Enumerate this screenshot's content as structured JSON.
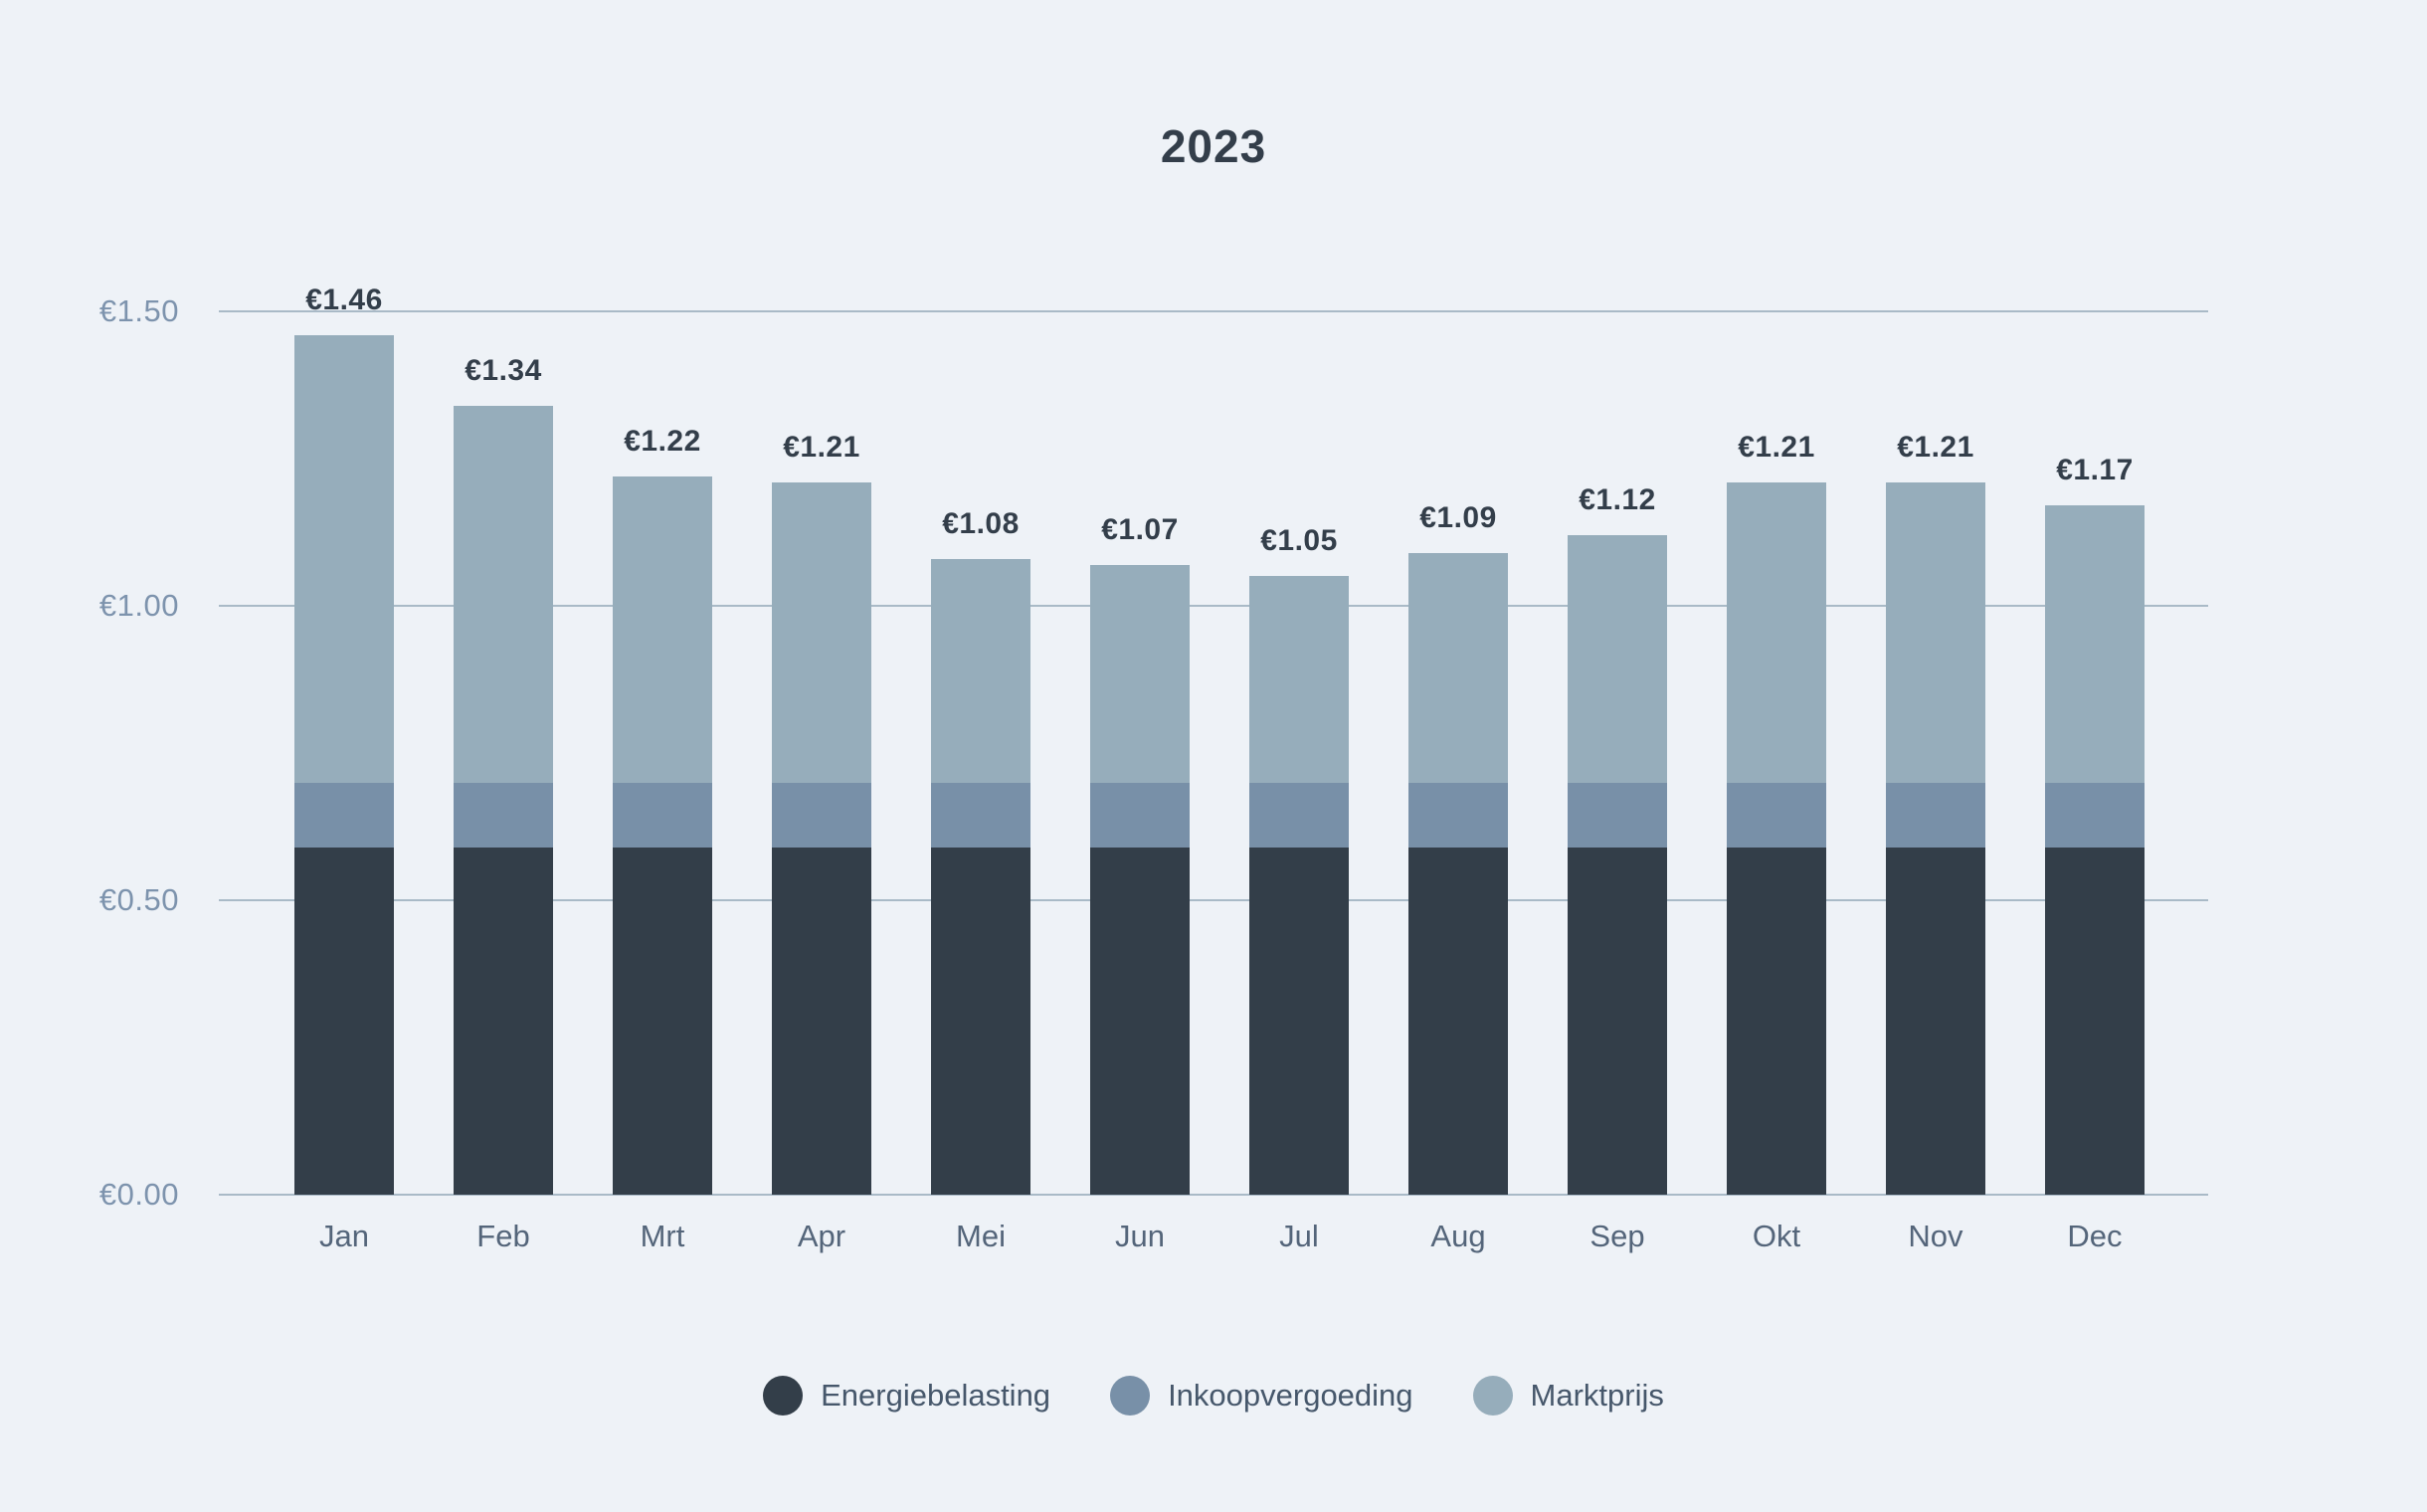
{
  "title": "2023",
  "colors": {
    "background": "#eef2f7",
    "gridline": "#a9bac7",
    "y_tick_label": "#7d93ad",
    "x_tick_label": "#54657a",
    "value_label": "#333e4a",
    "energiebelasting": "#333e49",
    "inkoopvergoeding": "#7890a8",
    "marktprijs": "#96adbb"
  },
  "y_axis": {
    "tick_labels": [
      "€1.50",
      "€1.00",
      "€0.50",
      "€0.00"
    ],
    "tick_values": [
      1.5,
      1.0,
      0.5,
      0.0
    ]
  },
  "legend": {
    "items": [
      {
        "label": "Energiebelasting",
        "color": "#333e49"
      },
      {
        "label": "Inkoopvergoeding",
        "color": "#7890a8"
      },
      {
        "label": "Marktprijs",
        "color": "#96adbb"
      }
    ]
  },
  "chart_data": {
    "type": "bar",
    "stacked": true,
    "title": "2023",
    "categories": [
      "Jan",
      "Feb",
      "Mrt",
      "Apr",
      "Mei",
      "Jun",
      "Jul",
      "Aug",
      "Sep",
      "Okt",
      "Nov",
      "Dec"
    ],
    "series": [
      {
        "name": "Energiebelasting",
        "color": "#333e49",
        "values": [
          0.59,
          0.59,
          0.59,
          0.59,
          0.59,
          0.59,
          0.59,
          0.59,
          0.59,
          0.59,
          0.59,
          0.59
        ]
      },
      {
        "name": "Inkoopvergoeding",
        "color": "#7890a8",
        "values": [
          0.11,
          0.11,
          0.11,
          0.11,
          0.11,
          0.11,
          0.11,
          0.11,
          0.11,
          0.11,
          0.11,
          0.11
        ]
      },
      {
        "name": "Marktprijs",
        "color": "#96adbb",
        "values": [
          0.76,
          0.64,
          0.52,
          0.51,
          0.38,
          0.37,
          0.35,
          0.39,
          0.42,
          0.51,
          0.51,
          0.47
        ]
      }
    ],
    "totals": [
      1.46,
      1.34,
      1.22,
      1.21,
      1.08,
      1.07,
      1.05,
      1.09,
      1.12,
      1.21,
      1.21,
      1.17
    ],
    "total_labels": [
      "€1.46",
      "€1.34",
      "€1.22",
      "€1.21",
      "€1.08",
      "€1.07",
      "€1.05",
      "€1.09",
      "€1.12",
      "€1.21",
      "€1.21",
      "€1.17"
    ],
    "ylim": [
      0,
      1.5
    ],
    "grid": true,
    "legend_position": "bottom"
  }
}
